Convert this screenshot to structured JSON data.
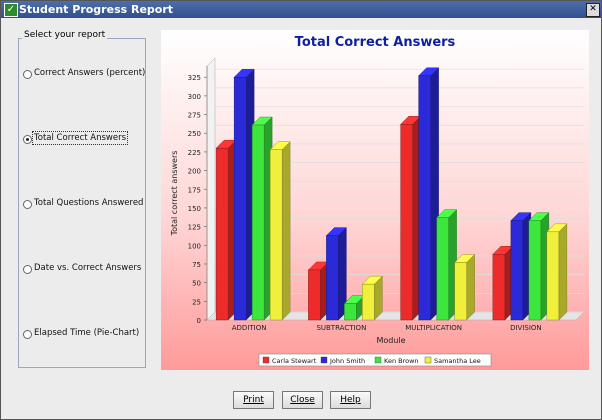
{
  "window": {
    "title": "Student Progress Report"
  },
  "report_panel": {
    "legend": "Select your report",
    "options": [
      {
        "label": "Correct Answers (percent)",
        "selected": false
      },
      {
        "label": "Total Correct Answers",
        "selected": true
      },
      {
        "label": "Total Questions Answered",
        "selected": false
      },
      {
        "label": "Date vs. Correct Answers",
        "selected": false
      },
      {
        "label": "Elapsed Time (Pie-Chart)",
        "selected": false
      }
    ]
  },
  "buttons": {
    "print": "Print",
    "close": "Close",
    "help": "Help"
  },
  "colors": {
    "series": [
      "#ee2b2b",
      "#2a2ad9",
      "#3ce63c",
      "#f0f03c"
    ],
    "title": "#0b1fa0"
  },
  "chart_data": {
    "type": "bar",
    "title": "Total Correct Answers",
    "xlabel": "Module",
    "ylabel": "Total correct answers",
    "categories": [
      "ADDITION",
      "SUBTRACTION",
      "MULTIPLICATION",
      "DIVISION"
    ],
    "series": [
      {
        "name": "Carla Stewart",
        "values": [
          230,
          67,
          262,
          88
        ]
      },
      {
        "name": "John Smith",
        "values": [
          325,
          113,
          327,
          133
        ]
      },
      {
        "name": "Ken Brown",
        "values": [
          261,
          22,
          137,
          133
        ]
      },
      {
        "name": "Samantha Lee",
        "values": [
          228,
          48,
          77,
          118
        ]
      }
    ],
    "ylim": [
      0,
      340
    ],
    "yticks": [
      0,
      25,
      50,
      75,
      100,
      125,
      150,
      175,
      200,
      225,
      250,
      275,
      300,
      325
    ],
    "legend_position": "bottom",
    "grid": true,
    "bar_style": "3d"
  }
}
